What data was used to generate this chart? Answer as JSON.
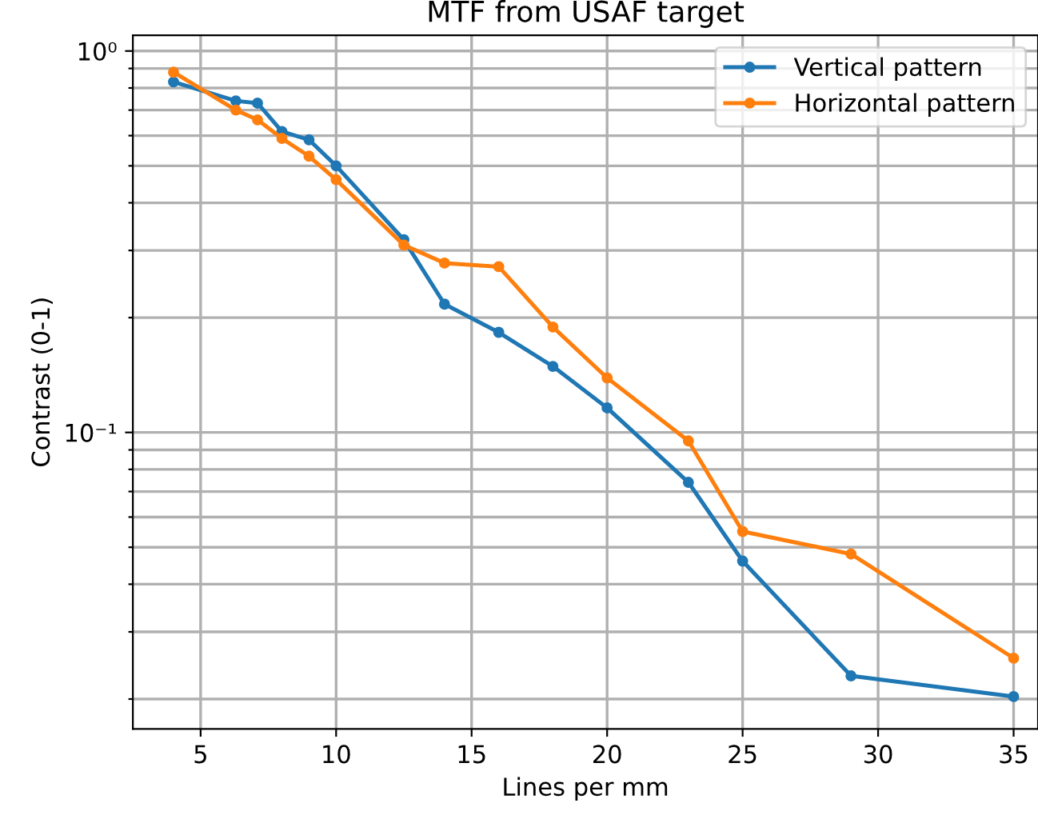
{
  "chart_data": {
    "type": "line",
    "title": "MTF from USAF target",
    "xlabel": "Lines per mm",
    "ylabel": "Contrast (0-1)",
    "x": [
      4,
      6.3,
      7.1,
      8,
      9,
      10,
      12.5,
      14,
      16,
      18,
      20,
      23,
      25,
      29,
      35
    ],
    "series": [
      {
        "name": "Vertical pattern",
        "color": "#1f77b4",
        "values": [
          0.83,
          0.74,
          0.73,
          0.615,
          0.585,
          0.5,
          0.32,
          0.217,
          0.183,
          0.149,
          0.116,
          0.074,
          0.046,
          0.023,
          0.0203
        ]
      },
      {
        "name": "Horizontal pattern",
        "color": "#ff7f0e",
        "values": [
          0.88,
          0.7,
          0.66,
          0.59,
          0.53,
          0.46,
          0.31,
          0.278,
          0.272,
          0.189,
          0.139,
          0.095,
          0.055,
          0.048,
          0.0256
        ]
      }
    ],
    "log": "y",
    "xlim": [
      2.5,
      35.9
    ],
    "ylim": [
      0.0167,
      1.1
    ],
    "xticks": [
      5,
      10,
      15,
      20,
      25,
      30,
      35
    ],
    "yticks": [
      {
        "value": 0.02,
        "label": null
      },
      {
        "value": 0.03,
        "label": null
      },
      {
        "value": 0.04,
        "label": null
      },
      {
        "value": 0.05,
        "label": null
      },
      {
        "value": 0.06,
        "label": null
      },
      {
        "value": 0.07,
        "label": null
      },
      {
        "value": 0.08,
        "label": null
      },
      {
        "value": 0.09,
        "label": null
      },
      {
        "value": 0.1,
        "label": "10⁻¹"
      },
      {
        "value": 0.2,
        "label": null
      },
      {
        "value": 0.3,
        "label": null
      },
      {
        "value": 0.4,
        "label": null
      },
      {
        "value": 0.5,
        "label": null
      },
      {
        "value": 0.6,
        "label": null
      },
      {
        "value": 0.7,
        "label": null
      },
      {
        "value": 0.8,
        "label": null
      },
      {
        "value": 0.9,
        "label": null
      },
      {
        "value": 1,
        "label": "10⁰"
      }
    ],
    "grid": true,
    "legend": "top right",
    "marker": "circle",
    "line_style": "solid"
  }
}
